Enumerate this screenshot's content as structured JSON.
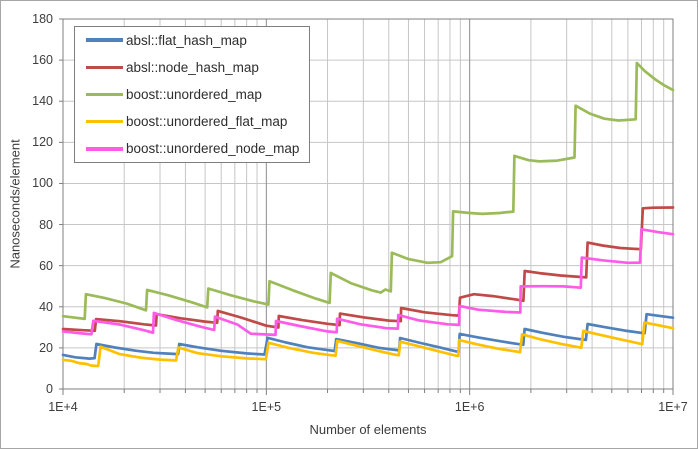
{
  "chart_data": {
    "type": "line",
    "x_axis": {
      "label": "Number of elements",
      "scale": "log",
      "min": 10000,
      "max": 10000000,
      "tick_labels": [
        "1E+4",
        "1E+5",
        "1E+6",
        "1E+7"
      ],
      "tick_values": [
        10000,
        100000,
        1000000,
        10000000
      ],
      "minor_gridlines": true
    },
    "y_axis": {
      "label": "Nanoseconds/element",
      "min": 0,
      "max": 180,
      "tick_step": 20,
      "tick_labels": [
        "0",
        "20",
        "40",
        "60",
        "80",
        "100",
        "120",
        "140",
        "160",
        "180"
      ]
    },
    "legend_position": "top-left",
    "grid_color_minor": "#c6c6c6",
    "grid_color_major": "#8c8c8c",
    "border_color": "#7f7f7f",
    "series": [
      {
        "name": "absl::flat_hash_map",
        "color": "#4F81BD",
        "points": [
          [
            10000,
            16.6
          ],
          [
            11500,
            15.4
          ],
          [
            13500,
            14.8
          ],
          [
            14300,
            15.0
          ],
          [
            14600,
            21.9
          ],
          [
            18000,
            20.2
          ],
          [
            23000,
            18.6
          ],
          [
            28000,
            17.6
          ],
          [
            33000,
            17.2
          ],
          [
            36800,
            17.0
          ],
          [
            37300,
            21.9
          ],
          [
            46000,
            20.3
          ],
          [
            60000,
            18.6
          ],
          [
            80000,
            17.3
          ],
          [
            98000,
            16.8
          ],
          [
            101500,
            24.9
          ],
          [
            125000,
            22.6
          ],
          [
            160000,
            20.3
          ],
          [
            200000,
            18.9
          ],
          [
            217000,
            18.5
          ],
          [
            220500,
            24.3
          ],
          [
            280000,
            22.3
          ],
          [
            360000,
            20.0
          ],
          [
            440000,
            18.9
          ],
          [
            450000,
            18.7
          ],
          [
            455000,
            24.8
          ],
          [
            560000,
            22.6
          ],
          [
            700000,
            20.4
          ],
          [
            860000,
            18.3
          ],
          [
            882000,
            18.1
          ],
          [
            893000,
            26.8
          ],
          [
            1100000,
            25.1
          ],
          [
            1400000,
            23.3
          ],
          [
            1750000,
            21.8
          ],
          [
            1836000,
            21.5
          ],
          [
            1862000,
            29.2
          ],
          [
            2300000,
            27.3
          ],
          [
            2900000,
            25.4
          ],
          [
            3600000,
            24.1
          ],
          [
            3730000,
            23.9
          ],
          [
            3800000,
            31.6
          ],
          [
            4600000,
            30.1
          ],
          [
            5800000,
            28.4
          ],
          [
            7250000,
            27.1
          ],
          [
            7420000,
            36.4
          ],
          [
            8500000,
            35.6
          ],
          [
            10000000,
            34.7
          ]
        ]
      },
      {
        "name": "absl::node_hash_map",
        "color": "#BF4A47",
        "points": [
          [
            10000,
            29.2
          ],
          [
            12500,
            28.6
          ],
          [
            14330,
            28.3
          ],
          [
            14550,
            34.0
          ],
          [
            19000,
            33.0
          ],
          [
            25000,
            31.5
          ],
          [
            28660,
            30.9
          ],
          [
            28900,
            36.4
          ],
          [
            38000,
            34.4
          ],
          [
            50000,
            32.8
          ],
          [
            57330,
            32.2
          ],
          [
            57700,
            38.0
          ],
          [
            75000,
            34.8
          ],
          [
            100000,
            30.8
          ],
          [
            114600,
            29.9
          ],
          [
            115200,
            35.5
          ],
          [
            150000,
            33.5
          ],
          [
            200000,
            31.7
          ],
          [
            229300,
            31.1
          ],
          [
            230300,
            36.7
          ],
          [
            300000,
            34.9
          ],
          [
            400000,
            33.3
          ],
          [
            458700,
            33.0
          ],
          [
            460000,
            39.4
          ],
          [
            600000,
            37.3
          ],
          [
            820000,
            35.9
          ],
          [
            885000,
            35.7
          ],
          [
            896000,
            44.4
          ],
          [
            1050000,
            46.1
          ],
          [
            1300000,
            45.2
          ],
          [
            1700000,
            43.5
          ],
          [
            1838000,
            42.9
          ],
          [
            1865000,
            57.4
          ],
          [
            2200000,
            56.4
          ],
          [
            2800000,
            55.2
          ],
          [
            3740000,
            54.3
          ],
          [
            3800000,
            71.2
          ],
          [
            4500000,
            69.8
          ],
          [
            5500000,
            68.6
          ],
          [
            6950000,
            68.0
          ],
          [
            7100000,
            87.9
          ],
          [
            8000000,
            88.2
          ],
          [
            10000000,
            88.3
          ]
        ]
      },
      {
        "name": "boost::unordered_map",
        "color": "#9BBB59",
        "points": [
          [
            10000,
            35.4
          ],
          [
            11500,
            34.7
          ],
          [
            12790,
            34.1
          ],
          [
            12960,
            46.1
          ],
          [
            16000,
            44.3
          ],
          [
            20500,
            41.6
          ],
          [
            25590,
            38.3
          ],
          [
            25920,
            48.2
          ],
          [
            33000,
            45.6
          ],
          [
            43000,
            42.2
          ],
          [
            51190,
            39.7
          ],
          [
            51840,
            48.9
          ],
          [
            67000,
            45.6
          ],
          [
            87000,
            42.6
          ],
          [
            102390,
            41.1
          ],
          [
            103700,
            52.4
          ],
          [
            135000,
            48.0
          ],
          [
            175000,
            44.0
          ],
          [
            204790,
            41.9
          ],
          [
            207400,
            56.5
          ],
          [
            260000,
            51.5
          ],
          [
            330000,
            48.0
          ],
          [
            365000,
            46.9
          ],
          [
            385000,
            48.4
          ],
          [
            409590,
            47.5
          ],
          [
            414700,
            66.3
          ],
          [
            500000,
            63.2
          ],
          [
            620000,
            61.4
          ],
          [
            720000,
            61.7
          ],
          [
            819190,
            64.6
          ],
          [
            829400,
            86.4
          ],
          [
            1000000,
            85.6
          ],
          [
            1150000,
            85.2
          ],
          [
            1400000,
            85.6
          ],
          [
            1638390,
            86.3
          ],
          [
            1658800,
            113.4
          ],
          [
            1950000,
            111.3
          ],
          [
            2200000,
            110.7
          ],
          [
            2700000,
            111.1
          ],
          [
            3276790,
            112.6
          ],
          [
            3317600,
            137.8
          ],
          [
            3900000,
            134.0
          ],
          [
            4600000,
            131.5
          ],
          [
            5400000,
            130.6
          ],
          [
            6553590,
            131.2
          ],
          [
            6635200,
            158.6
          ],
          [
            7300000,
            154.5
          ],
          [
            8200000,
            150.5
          ],
          [
            9100000,
            147.6
          ],
          [
            10000000,
            145.4
          ]
        ]
      },
      {
        "name": "boost::unordered_flat_map",
        "color": "#FFC000",
        "points": [
          [
            10000,
            14.2
          ],
          [
            11000,
            13.7
          ],
          [
            12000,
            12.6
          ],
          [
            13000,
            12.2
          ],
          [
            13800,
            11.4
          ],
          [
            14900,
            11.2
          ],
          [
            15300,
            20.6
          ],
          [
            19000,
            17.0
          ],
          [
            24000,
            15.3
          ],
          [
            30000,
            14.3
          ],
          [
            36000,
            13.9
          ],
          [
            36900,
            20.2
          ],
          [
            46000,
            17.4
          ],
          [
            60000,
            15.9
          ],
          [
            80000,
            14.9
          ],
          [
            99500,
            14.5
          ],
          [
            102500,
            22.5
          ],
          [
            130000,
            19.9
          ],
          [
            170000,
            17.6
          ],
          [
            210000,
            16.4
          ],
          [
            219000,
            16.2
          ],
          [
            223000,
            23.4
          ],
          [
            280000,
            21.0
          ],
          [
            360000,
            18.4
          ],
          [
            430000,
            16.7
          ],
          [
            448000,
            16.4
          ],
          [
            456000,
            23.0
          ],
          [
            560000,
            20.8
          ],
          [
            700000,
            18.4
          ],
          [
            850000,
            16.3
          ],
          [
            878000,
            16.1
          ],
          [
            888000,
            23.8
          ],
          [
            1100000,
            21.6
          ],
          [
            1400000,
            19.5
          ],
          [
            1700000,
            18.2
          ],
          [
            1770000,
            17.9
          ],
          [
            1810000,
            26.6
          ],
          [
            2200000,
            24.3
          ],
          [
            2800000,
            22.0
          ],
          [
            3400000,
            20.4
          ],
          [
            3540000,
            20.1
          ],
          [
            3620000,
            28.2
          ],
          [
            4400000,
            26.3
          ],
          [
            5600000,
            24.0
          ],
          [
            6800000,
            22.2
          ],
          [
            7060000,
            21.9
          ],
          [
            7230000,
            32.3
          ],
          [
            8500000,
            31.0
          ],
          [
            10000000,
            29.6
          ]
        ]
      },
      {
        "name": "boost::unordered_node_map",
        "color": "#FF5BE9",
        "points": [
          [
            10000,
            28.0
          ],
          [
            12000,
            27.2
          ],
          [
            13800,
            26.6
          ],
          [
            14100,
            33.2
          ],
          [
            19000,
            31.4
          ],
          [
            25000,
            28.6
          ],
          [
            27700,
            27.4
          ],
          [
            28000,
            37.0
          ],
          [
            36000,
            33.6
          ],
          [
            48000,
            30.2
          ],
          [
            55400,
            28.7
          ],
          [
            55900,
            35.2
          ],
          [
            72000,
            31.4
          ],
          [
            84000,
            26.9
          ],
          [
            110900,
            26.3
          ],
          [
            111600,
            33.1
          ],
          [
            150000,
            30.4
          ],
          [
            200000,
            28.0
          ],
          [
            221800,
            27.6
          ],
          [
            222900,
            34.2
          ],
          [
            290000,
            31.5
          ],
          [
            390000,
            29.6
          ],
          [
            443600,
            29.4
          ],
          [
            445800,
            36.0
          ],
          [
            560000,
            33.4
          ],
          [
            780000,
            31.5
          ],
          [
            887200,
            31.2
          ],
          [
            891000,
            40.4
          ],
          [
            1100000,
            38.6
          ],
          [
            1500000,
            37.5
          ],
          [
            1774400,
            37.2
          ],
          [
            1783000,
            49.9
          ],
          [
            2300000,
            50.0
          ],
          [
            2900000,
            49.9
          ],
          [
            3520000,
            49.3
          ],
          [
            3560000,
            63.9
          ],
          [
            4500000,
            62.6
          ],
          [
            6000000,
            61.4
          ],
          [
            6880000,
            61.5
          ],
          [
            6990000,
            77.7
          ],
          [
            8500000,
            76.3
          ],
          [
            10000000,
            75.3
          ]
        ]
      }
    ]
  }
}
